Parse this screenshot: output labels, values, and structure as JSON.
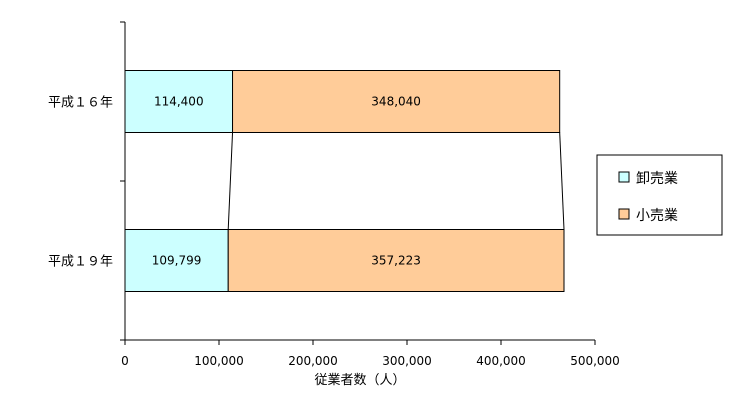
{
  "chart_data": {
    "type": "bar",
    "orientation": "horizontal",
    "stacked": true,
    "categories": [
      "平成１６年",
      "平成１９年"
    ],
    "series": [
      {
        "name": "卸売業",
        "values": [
          114400,
          109799
        ],
        "labels": [
          "114,400",
          "109,799"
        ],
        "color": "#ccffff"
      },
      {
        "name": "小売業",
        "values": [
          348040,
          357223
        ],
        "labels": [
          "348,040",
          "357,223"
        ],
        "color": "#ffcc99"
      }
    ],
    "xlabel": "従業者数（人）",
    "ylabel": "",
    "xlim": [
      0,
      500000
    ],
    "x_ticks": [
      0,
      100000,
      200000,
      300000,
      400000,
      500000
    ],
    "x_tick_labels": [
      "0",
      "100,000",
      "200,000",
      "300,000",
      "400,000",
      "500,000"
    ],
    "series_lines": true,
    "grid": false,
    "legend": "right"
  }
}
